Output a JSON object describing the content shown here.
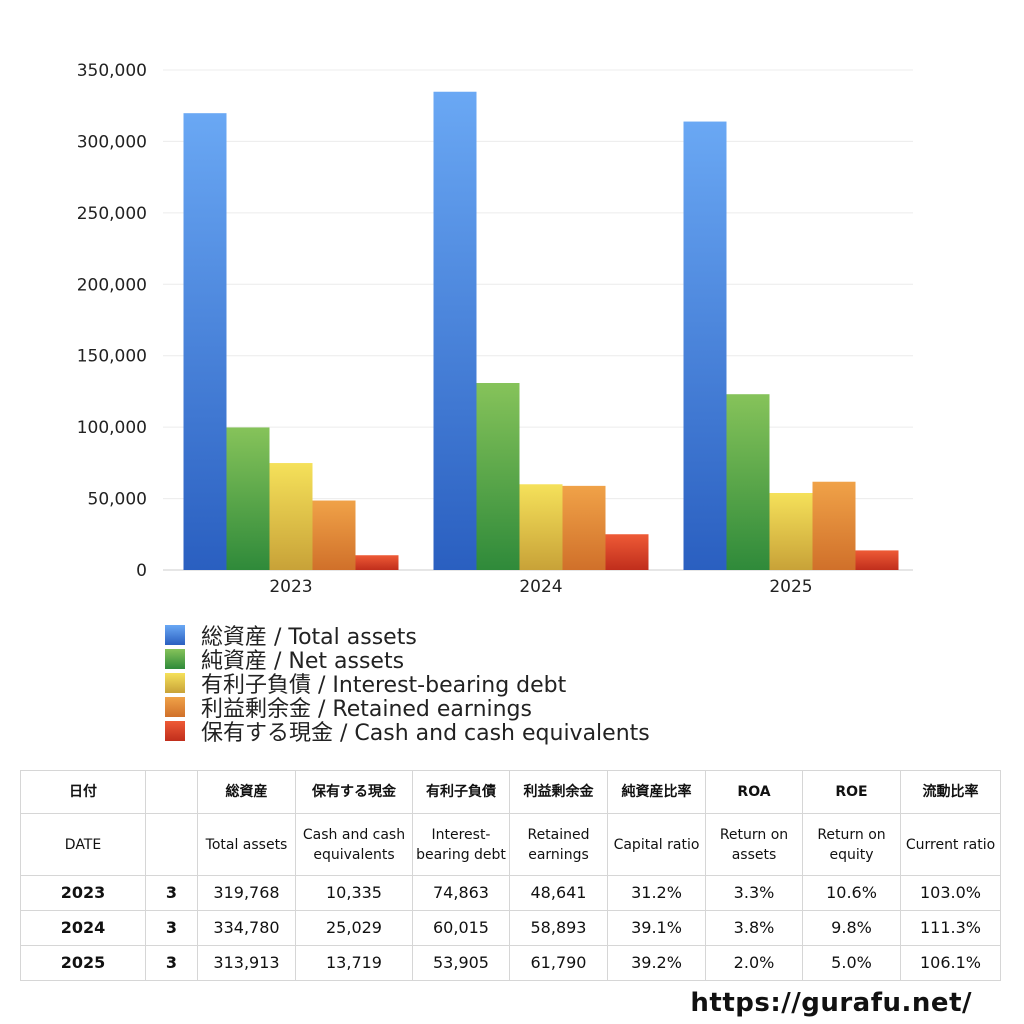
{
  "chart_data": {
    "type": "bar",
    "categories": [
      "2023",
      "2024",
      "2025"
    ],
    "series": [
      {
        "name": "総資産 / Total assets",
        "values": [
          319768,
          334780,
          313913
        ],
        "color_top": "#6aa8f4",
        "color_bottom": "#2a5fc0"
      },
      {
        "name": "純資産 / Net assets",
        "values": [
          99780,
          130900,
          123055
        ],
        "color_top": "#86c35a",
        "color_bottom": "#2f8a3a"
      },
      {
        "name": "有利子負債 / Interest-bearing debt",
        "values": [
          74863,
          60015,
          53905
        ],
        "color_top": "#f5e15a",
        "color_bottom": "#c8a238"
      },
      {
        "name": "利益剰余金 / Retained earnings",
        "values": [
          48641,
          58893,
          61790
        ],
        "color_top": "#f0a248",
        "color_bottom": "#d0702a"
      },
      {
        "name": "保有する現金 /  Cash and cash equivalents",
        "values": [
          10335,
          25029,
          13719
        ],
        "color_top": "#ee5a36",
        "color_bottom": "#c02e1c"
      }
    ],
    "y_ticks": [
      "0",
      "50,000",
      "100,000",
      "150,000",
      "200,000",
      "250,000",
      "300,000",
      "350,000"
    ],
    "ylim": [
      0,
      350000
    ],
    "grid": true,
    "legend_position": "bottom-left",
    "title": "",
    "xlabel": "",
    "ylabel": ""
  },
  "table": {
    "header_jp": [
      "日付",
      "",
      "総資産",
      "保有する現金",
      "有利子負債",
      "利益剰余金",
      "純資産比率",
      "ROA",
      "ROE",
      "流動比率"
    ],
    "header_en": [
      "DATE",
      "",
      "Total assets",
      "Cash and cash equivalents",
      "Interest-bearing debt",
      "Retained earnings",
      "Capital ratio",
      "Return on assets",
      "Return on equity",
      "Current ratio"
    ],
    "rows": [
      [
        "2023",
        "3",
        "319,768",
        "10,335",
        "74,863",
        "48,641",
        "31.2%",
        "3.3%",
        "10.6%",
        "103.0%"
      ],
      [
        "2024",
        "3",
        "334,780",
        "25,029",
        "60,015",
        "58,893",
        "39.1%",
        "3.8%",
        "9.8%",
        "111.3%"
      ],
      [
        "2025",
        "3",
        "313,913",
        "13,719",
        "53,905",
        "61,790",
        "39.2%",
        "2.0%",
        "5.0%",
        "106.1%"
      ]
    ]
  },
  "footer": {
    "url": "https://gurafu.net/"
  }
}
